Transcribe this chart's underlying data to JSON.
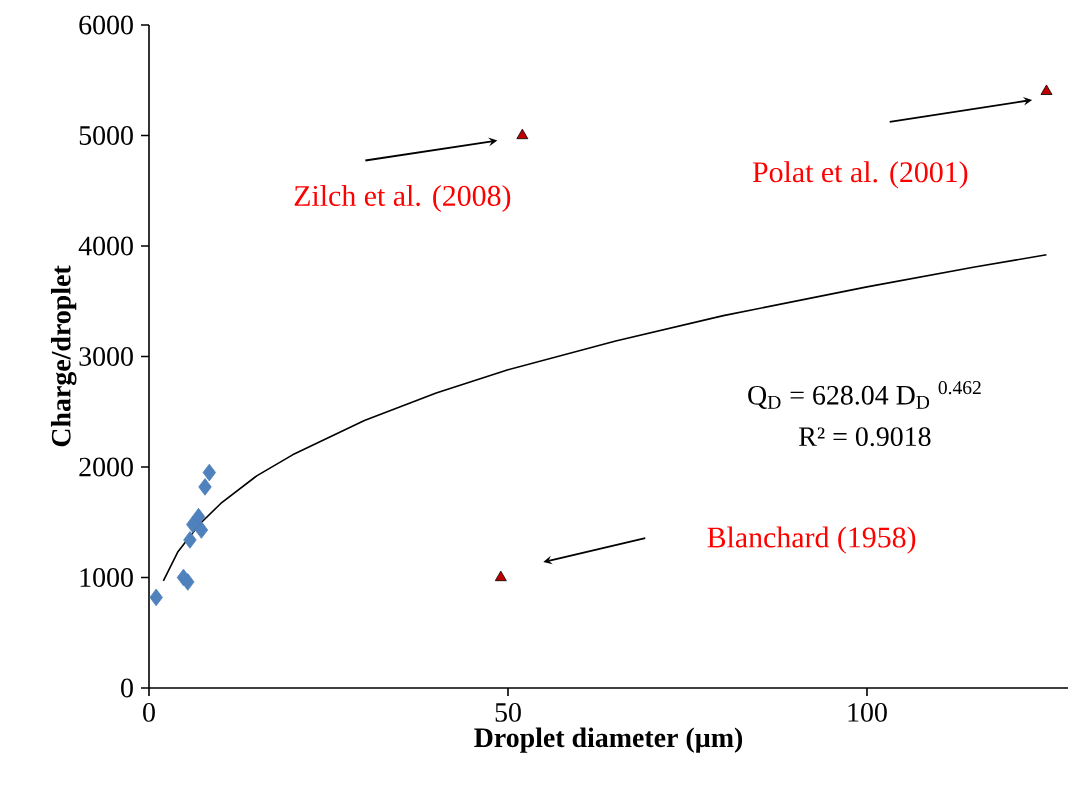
{
  "chart_data": {
    "type": "scatter",
    "xlabel": "Droplet diameter (µm)",
    "ylabel": "Charge/droplet",
    "xlim": [
      0,
      128
    ],
    "ylim": [
      0,
      6000
    ],
    "xticks": [
      0,
      50,
      100
    ],
    "yticks": [
      0,
      1000,
      2000,
      3000,
      4000,
      5000,
      6000
    ],
    "series": [
      {
        "type": "scatter",
        "marker": "diamond",
        "color": "#4f81bd",
        "x": [
          1,
          4.8,
          5.4,
          5.7,
          6.1,
          6.9,
          7.3,
          7.8,
          8.4
        ],
        "values": [
          820,
          1000,
          960,
          1340,
          1480,
          1550,
          1430,
          1820,
          1950
        ]
      },
      {
        "type": "scatter",
        "marker": "triangle",
        "color": "#c00000",
        "x": [
          52,
          125,
          49
        ],
        "values": [
          5000,
          5400,
          1000
        ]
      },
      {
        "type": "line",
        "marker": "none",
        "color": "#000000",
        "x": [
          2,
          4,
          7,
          10,
          15,
          20,
          30,
          40,
          50,
          65,
          80,
          100,
          115,
          125
        ],
        "values": [
          970,
          1230,
          1480,
          1670,
          1920,
          2110,
          2420,
          2670,
          2880,
          3140,
          3370,
          3630,
          3810,
          3920
        ]
      }
    ],
    "annotations": [
      {
        "text": "Zilch et al. (2008)",
        "x": 52,
        "y": 5000
      },
      "Polat et al. (2001)",
      "Blanchard (1958)",
      "Q$_{D}$ = 628.04 D$_{D}$ $^{0.462}$",
      "R² = 0.9018"
    ]
  }
}
